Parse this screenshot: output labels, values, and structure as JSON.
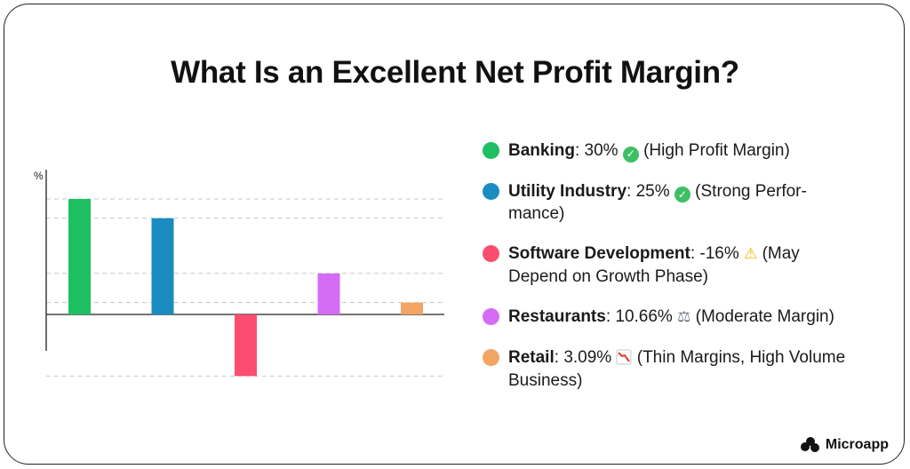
{
  "title": "What Is an Excellent Net Profit Margin?",
  "chart_data": {
    "type": "bar",
    "ylabel": "%",
    "categories": [
      "Banking",
      "Utility Industry",
      "Software Development",
      "Restaurants",
      "Retail"
    ],
    "values": [
      30,
      25,
      -16,
      10.66,
      3.09
    ],
    "colors": [
      "#1dbf62",
      "#1b8cc1",
      "#fb4d6f",
      "#d46cf5",
      "#f2a564"
    ],
    "reference_lines": [
      30,
      25,
      10.66,
      3.09,
      -16
    ]
  },
  "legend": [
    {
      "name": "Banking",
      "value": "30%",
      "icon": "check-icon",
      "note": "(High Profit Margin)",
      "color": "#1dbf62"
    },
    {
      "name": "Utility Industry",
      "value": "25%",
      "icon": "check-icon",
      "note": "(Strong Perfor-mance)",
      "color": "#1b8cc1"
    },
    {
      "name": "Software Development",
      "value": "-16%",
      "icon": "warning-icon",
      "note": "(May Depend on Growth Phase)",
      "color": "#fb4d6f"
    },
    {
      "name": "Restaurants",
      "value": "10.66%",
      "icon": "scales-icon",
      "note": "(Moderate Margin)",
      "color": "#d46cf5"
    },
    {
      "name": "Retail",
      "value": "3.09%",
      "icon": "chart-down-icon",
      "note": "(Thin Margins, High Volume Business)",
      "color": "#f2a564"
    }
  ],
  "brand": {
    "name": "Microapp"
  }
}
